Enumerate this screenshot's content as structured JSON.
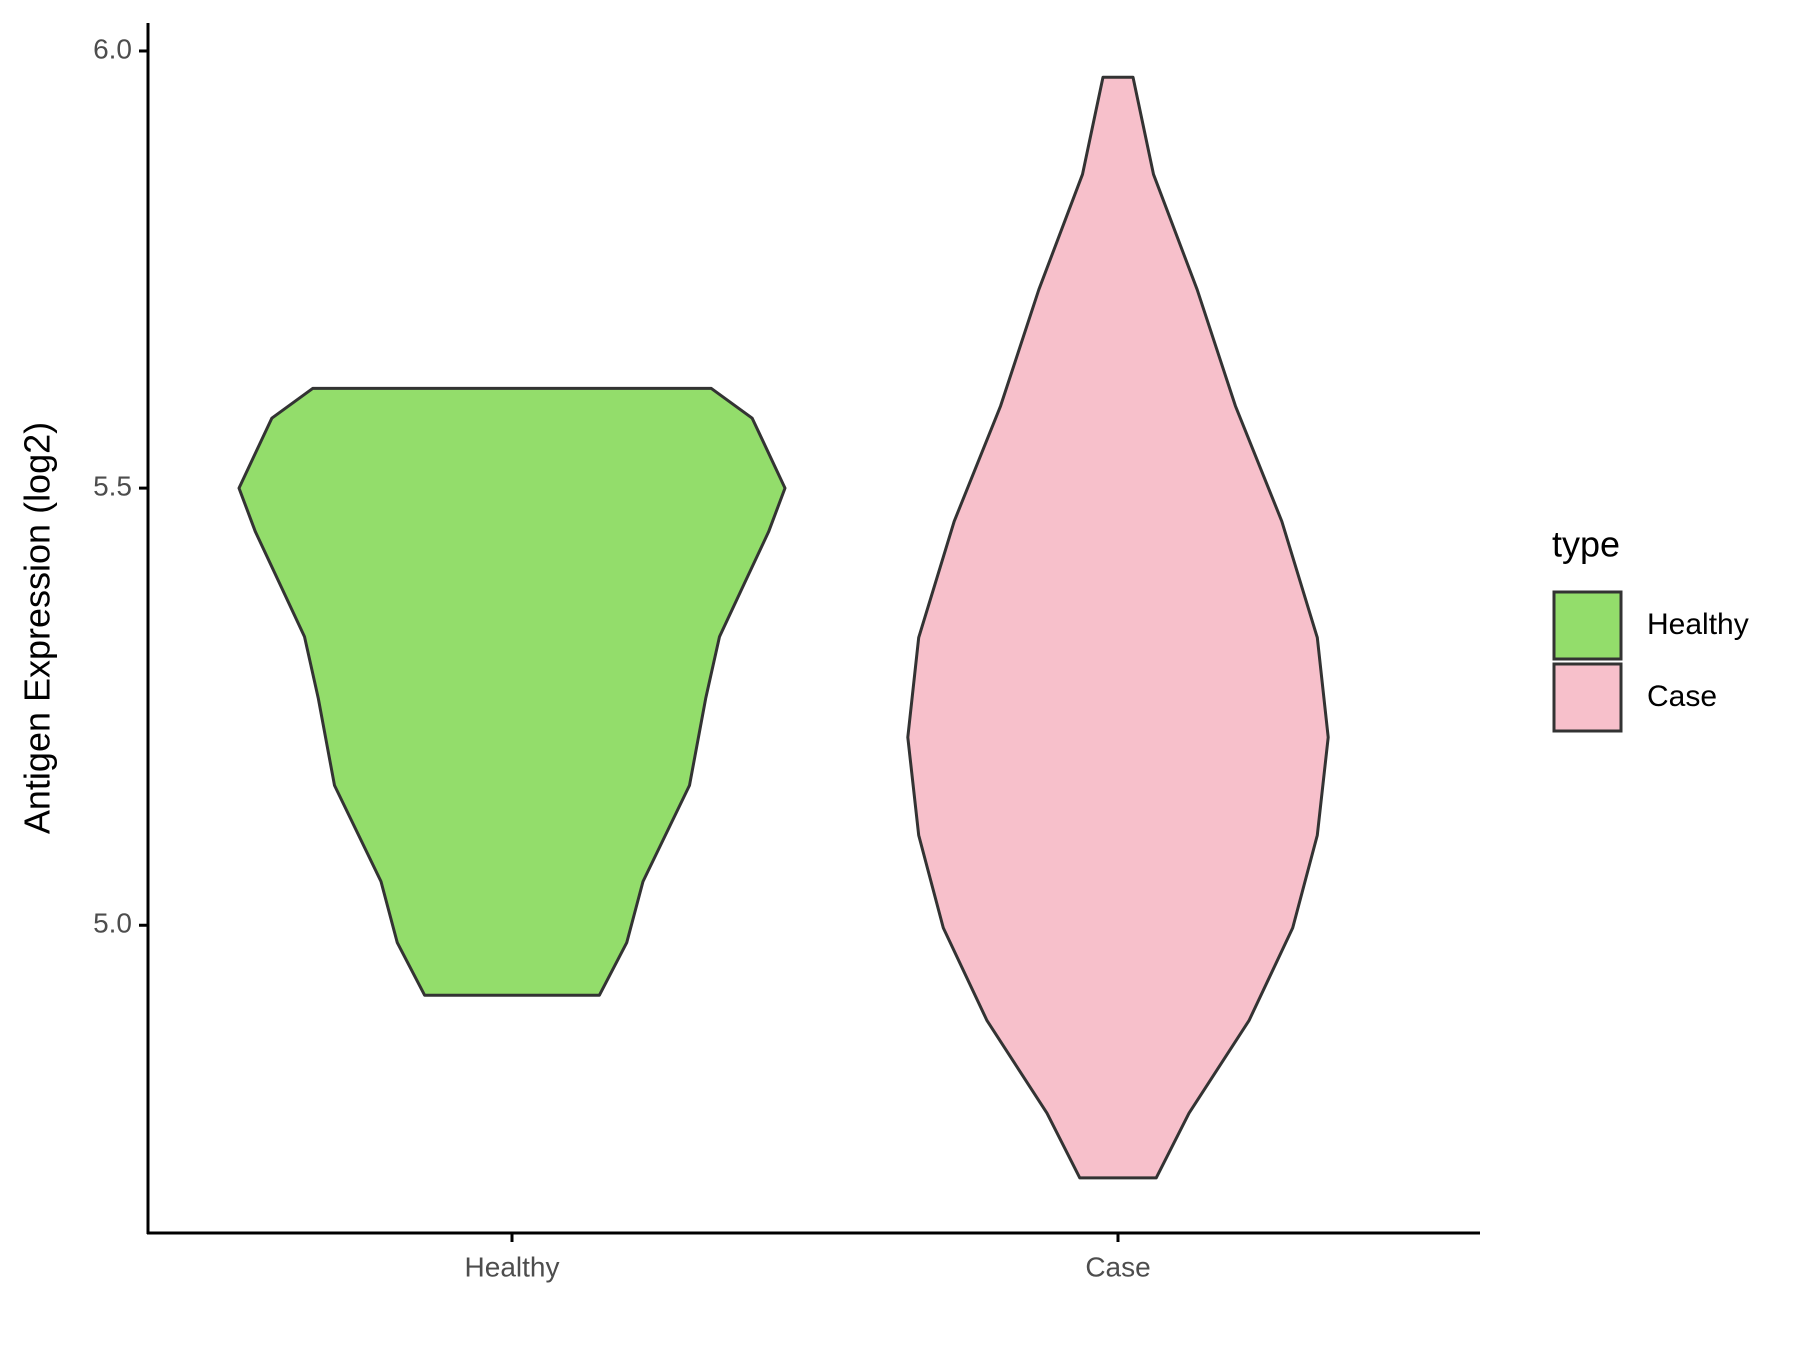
{
  "chart_data": {
    "type": "violin",
    "y_label": "Antigen Expression (log2)",
    "categories": [
      "Healthy",
      "Case"
    ],
    "legend_title": "type",
    "ylim": [
      4.648,
      6.032
    ],
    "yticks": [
      {
        "value": 5,
        "label": "5.0"
      },
      {
        "value": 5.5,
        "label": "5.5"
      },
      {
        "value": 6,
        "label": "6.0"
      }
    ],
    "grid": false,
    "series": [
      {
        "name": "Healthy",
        "color": "#93dd6b",
        "y": [
          5.614,
          5.58,
          5.5,
          5.45,
          5.39,
          5.33,
          5.26,
          5.16,
          5.05,
          4.98,
          4.92
        ],
        "density": [
          0.73,
          0.88,
          1.0,
          0.94,
          0.85,
          0.76,
          0.71,
          0.65,
          0.48,
          0.42,
          0.32
        ]
      },
      {
        "name": "Case",
        "color": "#f7c0cb",
        "y": [
          5.97,
          5.859,
          5.727,
          5.594,
          5.462,
          5.329,
          5.215,
          5.103,
          4.997,
          4.891,
          4.785,
          4.711
        ],
        "density": [
          0.055,
          0.13,
          0.29,
          0.43,
          0.6,
          0.73,
          0.77,
          0.73,
          0.64,
          0.48,
          0.26,
          0.14
        ]
      }
    ]
  }
}
